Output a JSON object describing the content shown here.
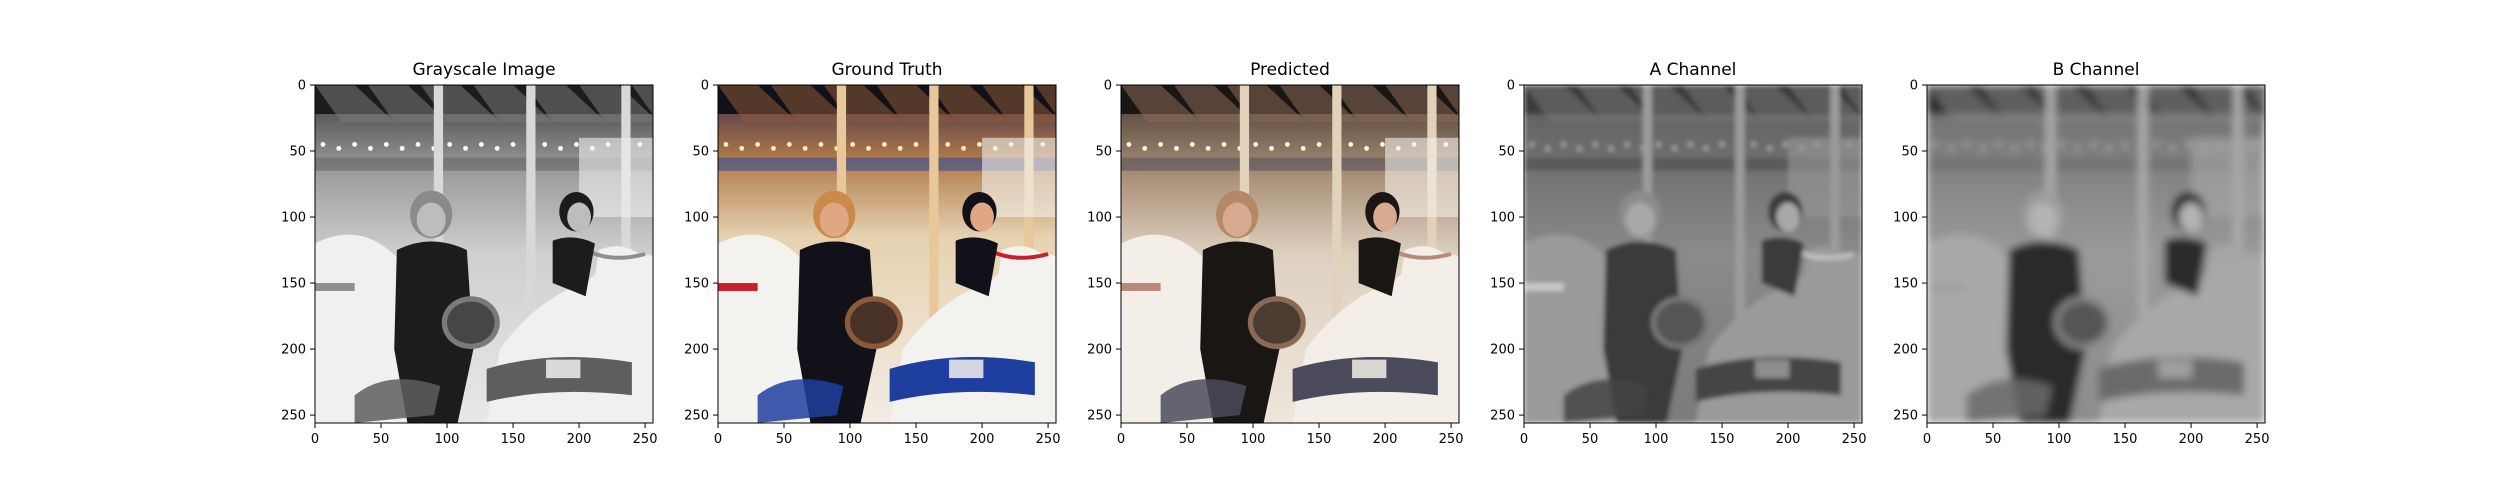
{
  "figure": {
    "panels": [
      {
        "id": "grayscale",
        "title": "Grayscale Image",
        "colormap": "gray",
        "source": "grayscale"
      },
      {
        "id": "ground-truth",
        "title": "Ground Truth",
        "colormap": "rgb",
        "source": "color"
      },
      {
        "id": "predicted",
        "title": "Predicted",
        "colormap": "rgb",
        "source": "color-muted"
      },
      {
        "id": "a-channel",
        "title": "A Channel",
        "colormap": "gray",
        "source": "a-channel"
      },
      {
        "id": "b-channel",
        "title": "B Channel",
        "colormap": "gray",
        "source": "b-channel"
      }
    ]
  },
  "chart_data": [
    {
      "type": "image",
      "title": "Grayscale Image",
      "xlim": [
        0,
        256
      ],
      "ylim": [
        256,
        0
      ],
      "xticks": [
        0,
        50,
        100,
        150,
        200,
        250
      ],
      "yticks": [
        0,
        50,
        100,
        150,
        200,
        250
      ],
      "grid": false
    },
    {
      "type": "image",
      "title": "Ground Truth",
      "xlim": [
        0,
        256
      ],
      "ylim": [
        256,
        0
      ],
      "xticks": [
        0,
        50,
        100,
        150,
        200,
        250
      ],
      "yticks": [
        0,
        50,
        100,
        150,
        200,
        250
      ],
      "grid": false
    },
    {
      "type": "image",
      "title": "Predicted",
      "xlim": [
        0,
        256
      ],
      "ylim": [
        256,
        0
      ],
      "xticks": [
        0,
        50,
        100,
        150,
        200,
        250
      ],
      "yticks": [
        0,
        50,
        100,
        150,
        200,
        250
      ],
      "grid": false
    },
    {
      "type": "image",
      "title": "A Channel",
      "xlim": [
        0,
        256
      ],
      "ylim": [
        256,
        0
      ],
      "xticks": [
        0,
        50,
        100,
        150,
        200,
        250
      ],
      "yticks": [
        0,
        50,
        100,
        150,
        200,
        250
      ],
      "grid": false
    },
    {
      "type": "image",
      "title": "B Channel",
      "xlim": [
        0,
        256
      ],
      "ylim": [
        256,
        0
      ],
      "xticks": [
        0,
        50,
        100,
        150,
        200,
        250
      ],
      "yticks": [
        0,
        50,
        100,
        150,
        200,
        250
      ],
      "grid": false
    }
  ]
}
